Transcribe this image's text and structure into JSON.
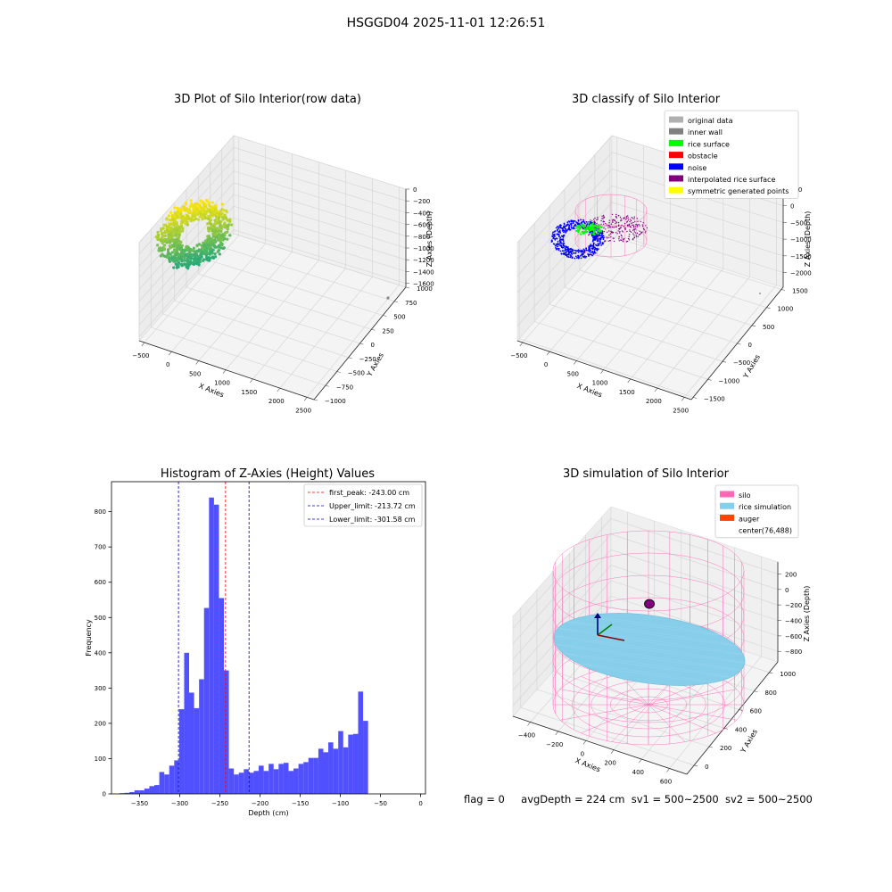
{
  "figure": {
    "title": "HSGGD04 2025-11-01 12:26:51",
    "status_line": {
      "flag": "flag = 0",
      "avg_depth": "avgDepth = 224 cm",
      "sv1": "sv1 = 500~2500",
      "sv2": "sv2 = 500~2500"
    }
  },
  "colors": {
    "histogram_bar": "#5050ff",
    "first_peak_line": "#ff0000",
    "limit_line": "#0000cc",
    "silo_wire": "#ff69b4",
    "rice_surface": "#87ceeb",
    "auger": "#ff4500",
    "rice_surface_green": "#00ff00",
    "noise": "#0000ff",
    "interpolated": "#800080"
  },
  "chart_data": [
    {
      "type": "scatter",
      "projection": "3d",
      "title": "3D Plot of Silo Interior(row data)",
      "xlabel": "X Axies",
      "ylabel": "Y Axies",
      "zlabel": "Z Axies (Depth)",
      "x_ticks": [
        "−500",
        "0",
        "500",
        "1000",
        "1500",
        "2000",
        "2500"
      ],
      "y_ticks": [
        "−1000",
        "−750",
        "−500",
        "−250",
        "0",
        "250",
        "500",
        "750",
        "1000"
      ],
      "z_ticks": [
        "0",
        "−200",
        "−400",
        "−600",
        "−800",
        "−1000",
        "−1200",
        "−1400",
        "−1600"
      ],
      "colormap": "viridis"
    },
    {
      "type": "scatter",
      "projection": "3d",
      "title": "3D classify of Silo Interior",
      "xlabel": "X Axies",
      "ylabel": "Y Axies",
      "zlabel": "Z Axies (Depth)",
      "x_ticks": [
        "−500",
        "0",
        "500",
        "1000",
        "1500",
        "2000",
        "2500"
      ],
      "y_ticks": [
        "−1500",
        "−1000",
        "−500",
        "0",
        "500",
        "1000",
        "1500"
      ],
      "z_ticks": [
        "500",
        "0",
        "−500",
        "−1000",
        "−1500",
        "−2000"
      ],
      "legend_position": "top-right",
      "legend": [
        {
          "label": "original data",
          "color": "#b0b0b0"
        },
        {
          "label": "inner wall",
          "color": "#808080"
        },
        {
          "label": "rice surface",
          "color": "#00ff00"
        },
        {
          "label": "obstacle",
          "color": "#ff0000"
        },
        {
          "label": "noise",
          "color": "#0000ff"
        },
        {
          "label": "interpolated rice surface",
          "color": "#800080"
        },
        {
          "label": "symmetric generated points",
          "color": "#ffff00"
        }
      ]
    },
    {
      "type": "bar",
      "title": "Histogram of Z-Axies (Height) Values",
      "xlabel": "Depth (cm)",
      "ylabel": "Frequency",
      "xlim": [
        -385,
        6
      ],
      "ylim": [
        0,
        885
      ],
      "x_ticks": [
        -350,
        -300,
        -250,
        -200,
        -150,
        -100,
        -50,
        0
      ],
      "x_tick_labels": [
        "−350",
        "−300",
        "−250",
        "−200",
        "−150",
        "−100",
        "−50",
        "0"
      ],
      "y_ticks": [
        0,
        100,
        200,
        300,
        400,
        500,
        600,
        700,
        800
      ],
      "y_tick_labels": [
        "0",
        "100",
        "200",
        "300",
        "400",
        "500",
        "600",
        "700",
        "800"
      ],
      "bin_start": -375,
      "bin_width": 6.19,
      "values": [
        2,
        3,
        5,
        10,
        10,
        15,
        22,
        25,
        62,
        55,
        80,
        95,
        240,
        400,
        287,
        243,
        325,
        527,
        840,
        820,
        555,
        350,
        72,
        55,
        60,
        70,
        60,
        65,
        80,
        65,
        85,
        70,
        85,
        88,
        65,
        72,
        85,
        90,
        102,
        102,
        128,
        118,
        146,
        128,
        178,
        132,
        168,
        170,
        290,
        207
      ],
      "lines": [
        {
          "name": "first_peak: -243.00 cm",
          "x": -243.0,
          "color": "#ff0000"
        },
        {
          "name": "Upper_limit: -213.72 cm",
          "x": -213.72,
          "color": "#0000cc"
        },
        {
          "name": "Lower_limit: -301.58 cm",
          "x": -301.58,
          "color": "#0000cc"
        }
      ],
      "legend_position": "top-right"
    },
    {
      "type": "surface",
      "projection": "3d",
      "title": "3D simulation of Silo Interior",
      "xlabel": "X Axies",
      "ylabel": "Y Axies",
      "zlabel": "Z Axies (Depth)",
      "x_ticks": [
        "−400",
        "−200",
        "0",
        "200",
        "400",
        "600"
      ],
      "y_ticks": [
        "0",
        "200",
        "400",
        "600",
        "800",
        "1000"
      ],
      "z_ticks": [
        "200",
        "0",
        "−200",
        "−400",
        "−600",
        "−800"
      ],
      "legend_position": "top-right",
      "legend": [
        {
          "label": "silo",
          "color": "#ff69b4"
        },
        {
          "label": "rice simulation",
          "color": "#87ceeb"
        },
        {
          "label": "auger",
          "color": "#ff4500"
        },
        {
          "label": "center(76,488)",
          "color": "none"
        }
      ]
    }
  ]
}
